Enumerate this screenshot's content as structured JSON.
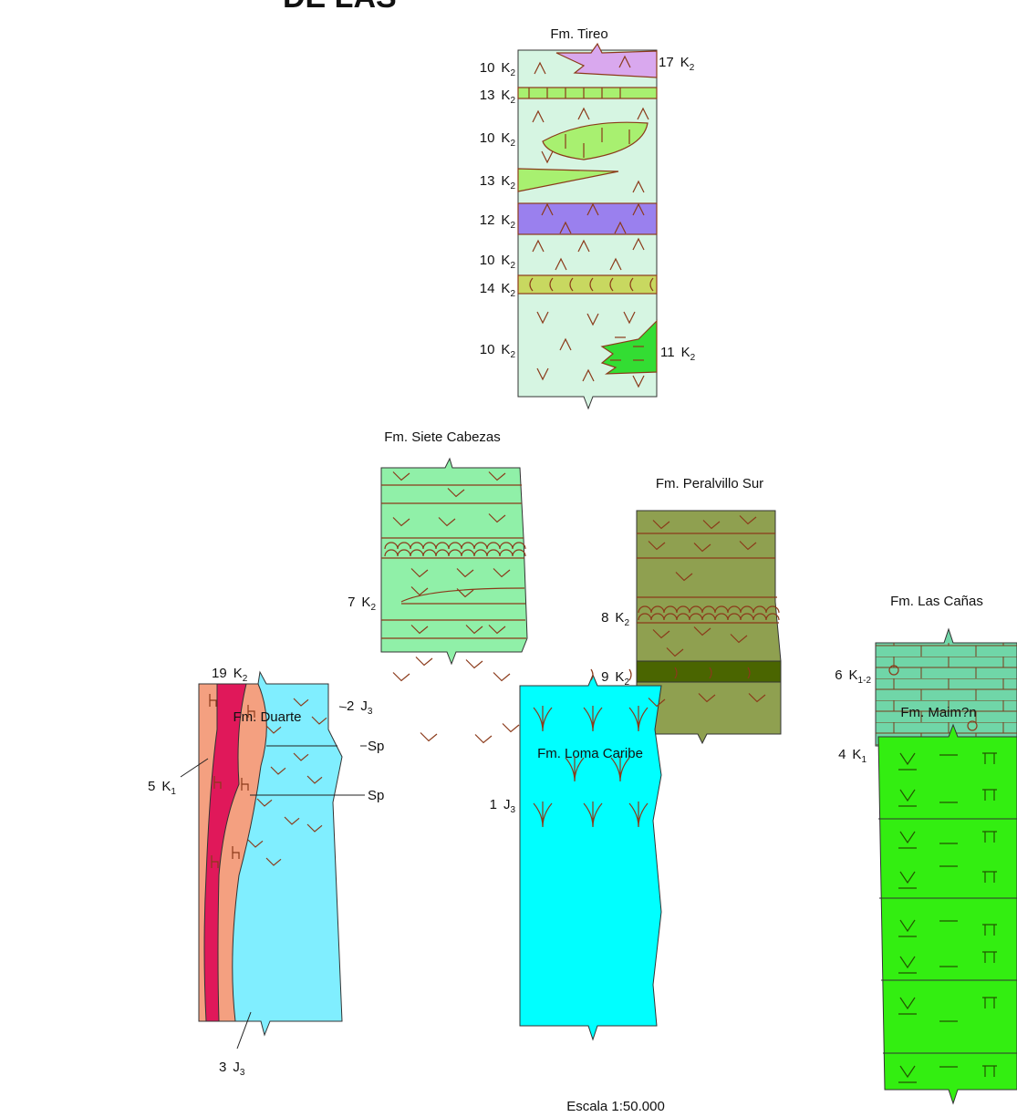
{
  "header": {
    "title": "DE LAS"
  },
  "columns": [
    {
      "title": "Fm. Tireo",
      "units": [
        {
          "num": "10",
          "sym": "K",
          "sub": "2"
        },
        {
          "num": "17",
          "sym": "K",
          "sub": "2"
        },
        {
          "num": "13",
          "sym": "K",
          "sub": "2"
        },
        {
          "num": "10",
          "sym": "K",
          "sub": "2"
        },
        {
          "num": "13",
          "sym": "K",
          "sub": "2"
        },
        {
          "num": "12",
          "sym": "K",
          "sub": "2"
        },
        {
          "num": "10",
          "sym": "K",
          "sub": "2"
        },
        {
          "num": "14",
          "sym": "K",
          "sub": "2"
        },
        {
          "num": "10",
          "sym": "K",
          "sub": "2"
        },
        {
          "num": "11",
          "sym": "K",
          "sub": "2"
        }
      ]
    },
    {
      "title": "Fm. Siete Cabezas",
      "units": [
        {
          "num": "7",
          "sym": "K",
          "sub": "2"
        }
      ]
    },
    {
      "title": "Fm. Peralvillo Sur",
      "units": [
        {
          "num": "8",
          "sym": "K",
          "sub": "2"
        },
        {
          "num": "9",
          "sym": "K",
          "sub": "2"
        }
      ]
    },
    {
      "title": "Fm. Las Cañas",
      "units": [
        {
          "num": "6",
          "sym": "K",
          "sub": "1-2"
        }
      ]
    },
    {
      "title": "Fm. Maim?n",
      "units": [
        {
          "num": "4",
          "sym": "K",
          "sub": "1"
        }
      ]
    },
    {
      "title": "Fm. Loma Caribe",
      "units": [
        {
          "num": "1",
          "sym": "J",
          "sub": "3"
        }
      ]
    },
    {
      "title": "Fm. Duarte",
      "units": [
        {
          "num": "19",
          "sym": "K",
          "sub": "2"
        },
        {
          "num": "2",
          "sym": "J",
          "sub": "3"
        },
        {
          "text": "Sp"
        },
        {
          "text": "Sp"
        },
        {
          "num": "5",
          "sym": "K",
          "sub": "1"
        },
        {
          "num": "3",
          "sym": "J",
          "sub": "3"
        }
      ]
    }
  ],
  "scale": "Escala 1:50.000"
}
